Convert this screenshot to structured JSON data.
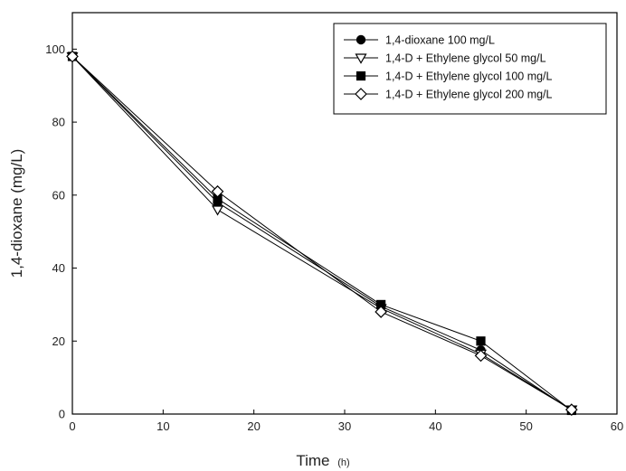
{
  "chart_data": {
    "type": "line",
    "xlabel": "Time",
    "xlabel_unit": "(h)",
    "ylabel": "1,4-dioxane (mg/L)",
    "xlim": [
      0,
      60
    ],
    "ylim": [
      0,
      110
    ],
    "xticks": [
      0,
      10,
      20,
      30,
      40,
      50,
      60
    ],
    "yticks": [
      0,
      20,
      40,
      60,
      80,
      100
    ],
    "grid": false,
    "legend_position": "top-right",
    "x": [
      0,
      16,
      34,
      45,
      55
    ],
    "series": [
      {
        "name": "1,4-dioxane 100 mg/L",
        "marker": "filled-circle",
        "values": [
          98,
          58,
          29.5,
          17.5,
          1
        ]
      },
      {
        "name": "1,4-D + Ethylene glycol 50 mg/L",
        "marker": "open-triangle-down",
        "values": [
          98,
          56,
          29,
          16.5,
          1.2
        ]
      },
      {
        "name": "1,4-D + Ethylene glycol 100 mg/L",
        "marker": "filled-square",
        "values": [
          98,
          59,
          30,
          20,
          1
        ]
      },
      {
        "name": "1,4-D + Ethylene glycol 200 mg/L",
        "marker": "open-diamond",
        "values": [
          98,
          61,
          28,
          16,
          1.2
        ]
      }
    ]
  }
}
